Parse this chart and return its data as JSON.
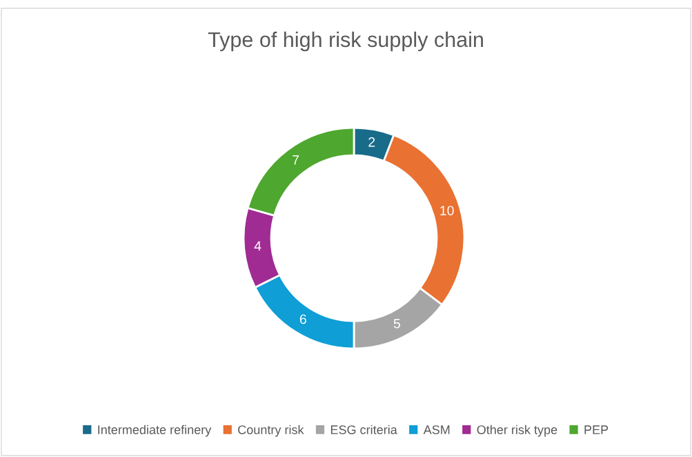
{
  "chart_data": {
    "type": "donut",
    "title": "Type of high risk supply chain",
    "categories": [
      "Intermediate refinery",
      "Country risk",
      "ESG criteria",
      "ASM",
      "Other risk type",
      "PEP"
    ],
    "values": [
      2,
      10,
      5,
      6,
      4,
      7
    ],
    "colors": [
      "#196b8a",
      "#e97132",
      "#a5a5a5",
      "#0f9ed5",
      "#a02b93",
      "#4ea72e"
    ],
    "data_labels": true,
    "legend": "bottom"
  }
}
